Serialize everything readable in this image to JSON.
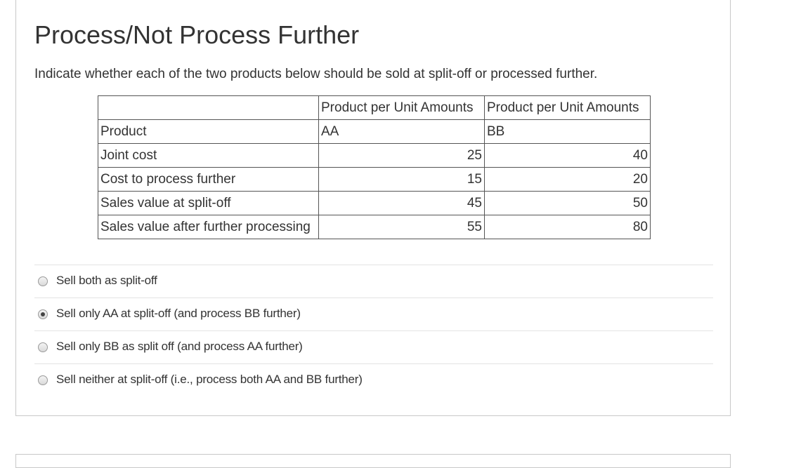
{
  "question": {
    "title": "Process/Not Process Further",
    "prompt": "Indicate whether each of the two products below should be sold at split-off or processed further."
  },
  "table": {
    "header": [
      "",
      "Product per Unit Amounts",
      "Product per Unit Amounts"
    ],
    "rows": [
      [
        "Product",
        "AA",
        "BB"
      ],
      [
        "Joint cost",
        "25",
        "40"
      ],
      [
        "Cost to process further",
        "15",
        "20"
      ],
      [
        "Sales value at split-off",
        "45",
        "50"
      ],
      [
        "Sales value after further processing",
        "55",
        "80"
      ]
    ]
  },
  "options": [
    {
      "label": "Sell both as split-off",
      "selected": false
    },
    {
      "label": "Sell only AA at split-off (and process BB further)",
      "selected": true
    },
    {
      "label": "Sell only BB as split off (and process AA further)",
      "selected": false
    },
    {
      "label": "Sell neither at split-off (i.e., process both AA and BB further)",
      "selected": false
    }
  ]
}
